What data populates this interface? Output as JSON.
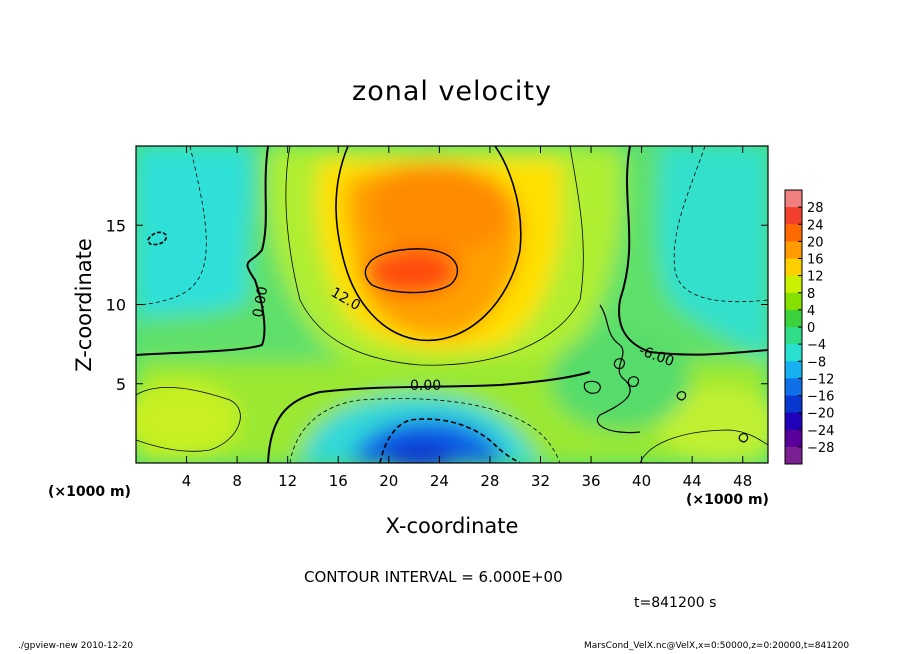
{
  "chart_data": {
    "type": "heatmap",
    "title": "zonal velocity",
    "xlabel": "X-coordinate",
    "ylabel": "Z-coordinate",
    "x_unit_left": "(×1000 m)",
    "x_unit_right": "(×1000 m)",
    "xlim": [
      0,
      50
    ],
    "ylim": [
      0,
      20
    ],
    "x_ticks": [
      4,
      8,
      12,
      16,
      20,
      24,
      28,
      32,
      36,
      40,
      44,
      48
    ],
    "y_ticks": [
      5,
      10,
      15
    ],
    "colorbar_ticks": [
      28,
      24,
      20,
      16,
      12,
      8,
      4,
      0,
      -4,
      -8,
      -12,
      -16,
      -20,
      -24,
      -28
    ],
    "colorbar_colors": [
      "#f08080",
      "#f2402c",
      "#ff6a00",
      "#ff9a00",
      "#ffd000",
      "#c8f000",
      "#86e000",
      "#3cd23c",
      "#30dc88",
      "#28e0d0",
      "#18b0f0",
      "#1070e8",
      "#0838d0",
      "#2000b8",
      "#5a009a",
      "#7a2090"
    ],
    "contour_interval": "CONTOUR INTERVAL = 6.000E+00",
    "contour_labels": [
      "0.00",
      "12.0",
      "0.00",
      "-6.00"
    ],
    "time_label": "t=841200 s",
    "field_range": [
      -28,
      28
    ],
    "max_region": {
      "x": 21,
      "z": 12,
      "value": 22
    },
    "min_region": {
      "x": 21,
      "z": 1,
      "value": -18
    }
  },
  "footer": {
    "left": "./gpview-new   2010-12-20",
    "right": "MarsCond_VelX.nc@VelX,x=0:50000,z=0:20000,t=841200"
  }
}
